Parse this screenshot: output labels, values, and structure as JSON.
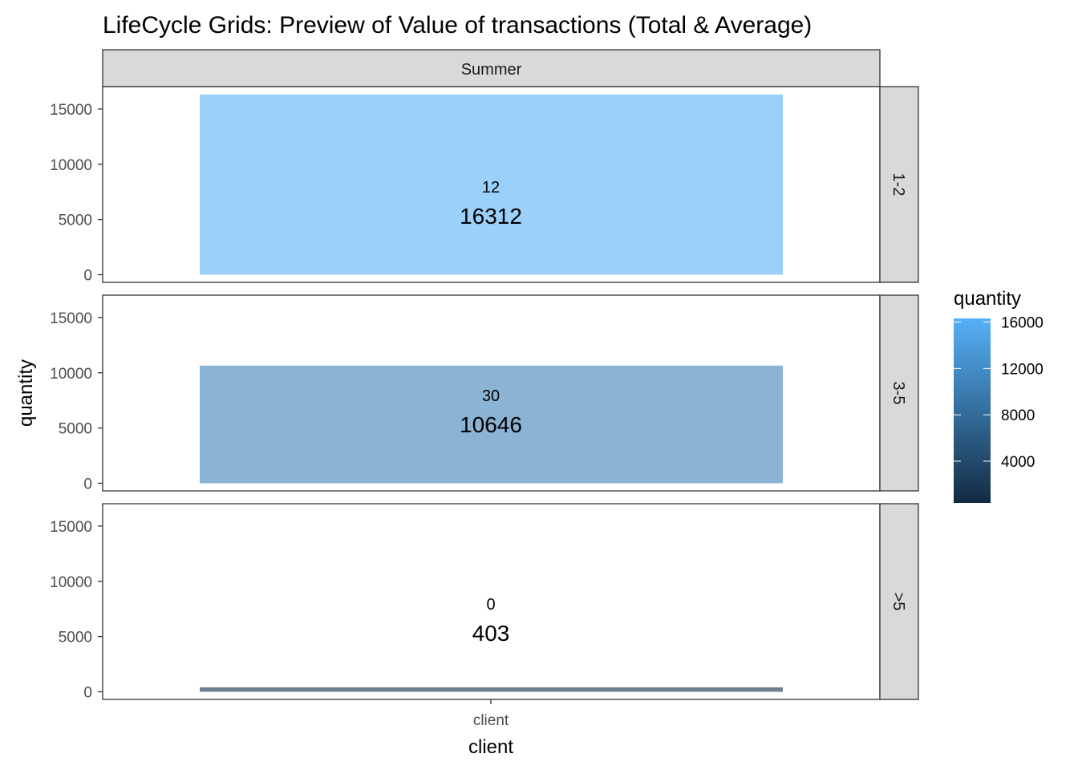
{
  "chart_data": {
    "type": "bar",
    "title": "LifeCycle Grids: Preview of Value of transactions (Total & Average)",
    "xlabel": "client",
    "ylabel": "quantity",
    "categories": [
      "client"
    ],
    "column_facets": [
      "Summer"
    ],
    "row_facets": [
      "1-2",
      "3-5",
      ">5"
    ],
    "ylim": [
      0,
      17000
    ],
    "yticks": [
      0,
      5000,
      10000,
      15000
    ],
    "panels": [
      {
        "row": "1-2",
        "column": "Summer",
        "category": "client",
        "value": 16312,
        "value_label": "16312",
        "average_label": "12"
      },
      {
        "row": "3-5",
        "column": "Summer",
        "category": "client",
        "value": 10646,
        "value_label": "10646",
        "average_label": "30"
      },
      {
        "row": ">5",
        "column": "Summer",
        "category": "client",
        "value": 403,
        "value_label": "403",
        "average_label": "0"
      }
    ],
    "legend": {
      "title": "quantity",
      "placement": "right",
      "ticks": [
        4000,
        8000,
        12000,
        16000
      ],
      "range": [
        403,
        16312
      ],
      "low_color": "#132b43",
      "high_color": "#56b1f7"
    },
    "bar_alpha": 0.6,
    "grid": false
  }
}
